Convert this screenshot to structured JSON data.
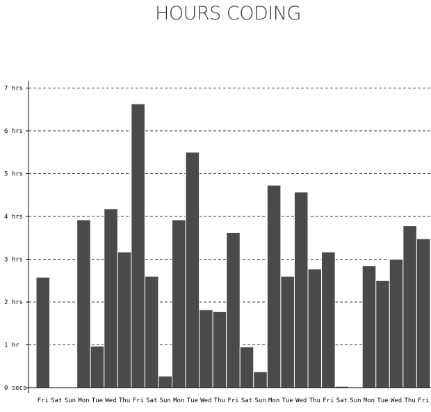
{
  "chart_data": {
    "type": "bar",
    "title": "HOURS CODING",
    "xlabel": "",
    "ylabel": "",
    "ylim": [
      0,
      7
    ],
    "grid": true,
    "y_ticks": [
      {
        "value": 0,
        "label": "0 secs"
      },
      {
        "value": 1,
        "label": "1 hr"
      },
      {
        "value": 2,
        "label": "2 hrs"
      },
      {
        "value": 3,
        "label": "3 hrs"
      },
      {
        "value": 4,
        "label": "4 hrs"
      },
      {
        "value": 5,
        "label": "5 hrs"
      },
      {
        "value": 6,
        "label": "6 hrs"
      },
      {
        "value": 7,
        "label": "7 hrs"
      }
    ],
    "categories": [
      "Fri",
      "Sat",
      "Sun",
      "Mon",
      "Tue",
      "Wed",
      "Thu",
      "Fri",
      "Sat",
      "Sun",
      "Mon",
      "Tue",
      "Wed",
      "Thu",
      "Fri",
      "Sat",
      "Sun",
      "Mon",
      "Tue",
      "Wed",
      "Thu",
      "Fri",
      "Sat",
      "Sun",
      "Mon",
      "Tue",
      "Wed",
      "Thu",
      "Fri"
    ],
    "values": [
      2.58,
      0,
      0,
      3.92,
      0.97,
      4.18,
      3.17,
      6.63,
      2.6,
      0.27,
      3.92,
      5.5,
      1.82,
      1.78,
      3.62,
      0.95,
      0.37,
      4.73,
      2.6,
      4.57,
      2.77,
      3.17,
      0.03,
      0,
      2.85,
      2.5,
      3,
      3.78,
      3.48
    ],
    "colors": {
      "bar": "#4a4a4a",
      "bar_stroke": "#ffffff",
      "grid": "#333333",
      "axis": "#000000"
    }
  }
}
